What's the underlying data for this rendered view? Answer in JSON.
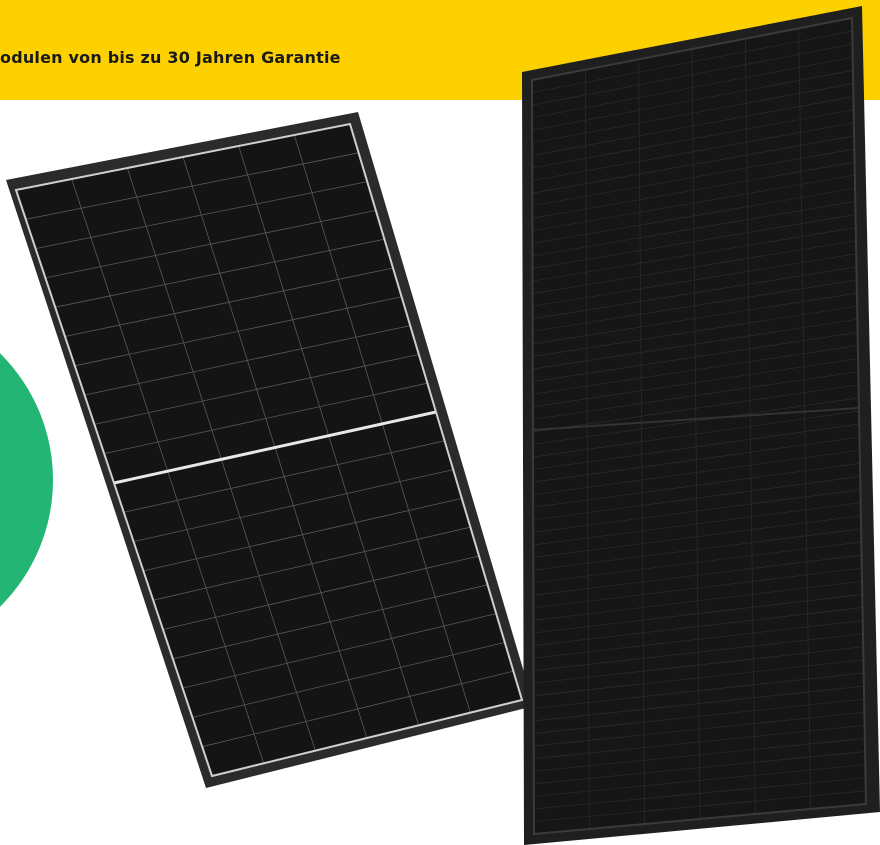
{
  "banner": {
    "text": "odulen von bis zu 30 Jahren Garantie"
  }
}
